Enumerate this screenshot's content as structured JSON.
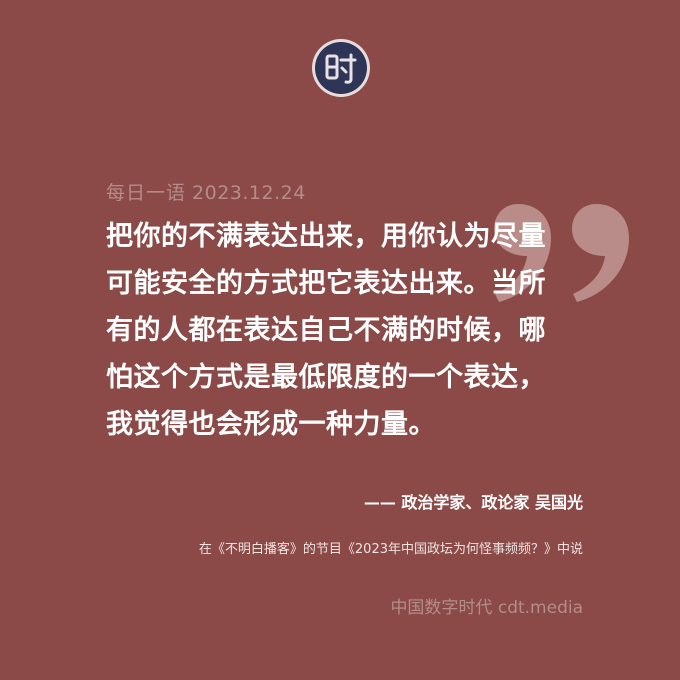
{
  "colors": {
    "background": "#8b4a47",
    "quote_text": "#ffffff",
    "muted_text": "#b58c89",
    "logo_fill": "#2f3557",
    "quote_mark": "#c9a3a0"
  },
  "logo": {
    "glyph": "时",
    "icon": "logo-seal-icon"
  },
  "header": {
    "label": "每日一语",
    "date": "2023.12.24"
  },
  "quote": {
    "lines": [
      "把你的不满表达出来，用你认为尽量",
      "可能安全的方式把它表达出来。当所",
      "有的人都在表达自己不满的时候，哪",
      "怕这个方式是最低限度的一个表达，",
      "我觉得也会形成一种力量。"
    ]
  },
  "attribution": {
    "text": "—— 政治学家、政论家 吴国光"
  },
  "source": {
    "text": "在《不明白播客》的节目《2023年中国政坛为何怪事频频？》中说"
  },
  "footer": {
    "brand": "中国数字时代 cdt.media"
  }
}
